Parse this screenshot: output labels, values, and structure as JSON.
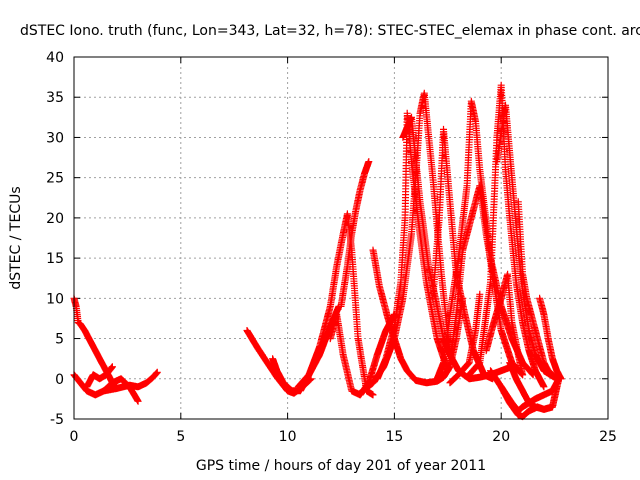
{
  "chart_data": {
    "type": "scatter",
    "title": "dSTEC Iono. truth (func, Lon=343, Lat=32, h=78): STEC-STEC_elemax in phase cont. arc",
    "xlabel": "GPS time / hours of day 201 of year 2011",
    "ylabel": "dSTEC  / TECUs",
    "xlim": [
      0,
      25
    ],
    "ylim": [
      -5,
      40
    ],
    "xticks": [
      0,
      5,
      10,
      15,
      20,
      25
    ],
    "yticks": [
      -5,
      0,
      5,
      10,
      15,
      20,
      25,
      30,
      35,
      40
    ],
    "grid": true,
    "marker": "+",
    "color": "#ff0000",
    "series": [
      {
        "x": [
          0.0,
          0.1,
          0.2,
          0.3,
          0.5,
          0.8,
          1.2,
          1.6,
          1.8,
          2.0
        ],
        "y": [
          10,
          9,
          7,
          6.8,
          6,
          4.5,
          2.5,
          0.5,
          -0.5,
          -1.2
        ]
      },
      {
        "x": [
          0.0,
          0.3,
          0.6,
          1.0,
          1.4,
          1.8,
          2.2,
          2.6,
          3.0
        ],
        "y": [
          0.5,
          -0.5,
          -1.5,
          -2.0,
          -1.5,
          -0.5,
          0.0,
          -1.0,
          -2.8
        ]
      },
      {
        "x": [
          0.6,
          0.9,
          1.2,
          1.5,
          1.8
        ],
        "y": [
          -1.0,
          0.5,
          0.0,
          0.5,
          1.5
        ]
      },
      {
        "x": [
          1.4,
          2.0,
          2.6,
          3.0,
          3.4,
          3.7,
          3.9
        ],
        "y": [
          -1.5,
          -1.2,
          -0.8,
          -1.0,
          -0.5,
          0.2,
          0.8
        ]
      },
      {
        "x": [
          8.1,
          8.6,
          9.0,
          9.5,
          10.0,
          10.3,
          10.7,
          11.1
        ],
        "y": [
          6.0,
          3.8,
          2.2,
          0.2,
          -1.5,
          -1.8,
          -1.0,
          0.0
        ]
      },
      {
        "x": [
          9.3,
          9.5,
          9.8,
          10.2,
          10.6,
          11.0,
          11.5,
          12.0,
          12.4
        ],
        "y": [
          2.5,
          1.0,
          -0.5,
          -1.5,
          -1.5,
          0.5,
          3.0,
          6.5,
          9.0
        ]
      },
      {
        "x": [
          10.5,
          11.0,
          11.5,
          12.0,
          12.3,
          12.6,
          12.8,
          13.0,
          13.3,
          13.7,
          14.0
        ],
        "y": [
          -1.0,
          0.5,
          4.0,
          9.0,
          14.0,
          18.0,
          20.5,
          16.0,
          5.0,
          -1.5,
          -2.0
        ]
      },
      {
        "x": [
          12.0,
          12.3,
          12.6,
          13.0,
          13.4,
          13.8,
          14.2,
          14.6,
          15.0
        ],
        "y": [
          5.0,
          8.0,
          3.0,
          -1.5,
          -2.0,
          -0.5,
          3.0,
          6.0,
          8.0
        ]
      },
      {
        "x": [
          12.5,
          12.8,
          13.0,
          13.2,
          13.4,
          13.6,
          13.8
        ],
        "y": [
          9.0,
          14.0,
          18.0,
          21.0,
          23.5,
          25.5,
          27.0
        ]
      },
      {
        "x": [
          14.0,
          14.3,
          14.7,
          15.0,
          15.3,
          15.6,
          16.0,
          16.5,
          17.0,
          17.3,
          17.6,
          17.9,
          18.2
        ],
        "y": [
          16.0,
          11.5,
          7.5,
          5.0,
          2.5,
          1.0,
          -0.2,
          -0.5,
          -0.3,
          0.2,
          1.5,
          5.0,
          10.0
        ]
      },
      {
        "x": [
          13.5,
          14.0,
          14.5,
          15.0,
          15.4,
          15.8,
          16.0,
          16.2,
          16.4,
          16.8,
          17.2,
          17.6
        ],
        "y": [
          -1.5,
          -0.5,
          1.5,
          5.0,
          10.0,
          18.0,
          25.0,
          33.0,
          35.5,
          25.0,
          13.0,
          3.0
        ]
      },
      {
        "x": [
          14.2,
          14.6,
          15.0,
          15.3,
          15.5,
          15.6,
          15.8,
          16.1,
          16.5,
          17.0,
          17.5
        ],
        "y": [
          0.0,
          2.5,
          6.5,
          12.0,
          20.0,
          33.0,
          27.0,
          20.0,
          12.0,
          5.0,
          1.0
        ]
      },
      {
        "x": [
          15.4,
          15.8,
          16.2,
          16.6,
          17.0,
          17.3,
          17.6,
          18.0,
          18.5,
          19.0,
          19.5,
          20.0,
          20.5
        ],
        "y": [
          30.0,
          32.5,
          22.0,
          14.0,
          9.0,
          5.0,
          3.0,
          1.0,
          0.0,
          0.2,
          0.5,
          1.0,
          1.5
        ]
      },
      {
        "x": [
          16.8,
          17.1,
          17.3,
          17.6,
          17.9,
          18.3,
          18.7,
          19.2,
          19.6
        ],
        "y": [
          10.0,
          20.0,
          31.0,
          22.0,
          13.0,
          8.0,
          3.5,
          0.5,
          0.0
        ]
      },
      {
        "x": [
          17.0,
          17.3,
          17.6,
          18.0,
          18.4,
          18.6,
          18.8,
          19.0,
          19.5,
          20.0,
          20.5,
          21.0,
          21.5
        ],
        "y": [
          0.0,
          2.0,
          8.0,
          15.0,
          24.0,
          34.5,
          32.0,
          26.0,
          15.0,
          9.0,
          5.0,
          2.0,
          0.5
        ]
      },
      {
        "x": [
          17.6,
          17.9,
          18.2,
          18.6,
          19.0,
          19.3,
          19.6,
          20.0,
          20.5,
          21.0
        ],
        "y": [
          2.0,
          8.0,
          16.0,
          20.0,
          24.0,
          18.0,
          13.0,
          6.0,
          2.0,
          0.5
        ]
      },
      {
        "x": [
          17.6,
          18.0,
          18.5,
          18.8,
          19.0
        ],
        "y": [
          -0.5,
          0.5,
          2.0,
          6.0,
          10.5
        ]
      },
      {
        "x": [
          18.5,
          19.0,
          19.5,
          19.8,
          20.0,
          20.2,
          20.4,
          20.7,
          21.0,
          21.3,
          21.6,
          22.0
        ],
        "y": [
          0.5,
          2.0,
          12.0,
          30.0,
          36.5,
          26.0,
          20.0,
          12.0,
          7.0,
          3.5,
          1.0,
          -1.0
        ]
      },
      {
        "x": [
          19.8,
          20.2,
          20.5,
          20.8,
          21.0,
          21.3,
          21.6,
          22.0,
          22.3,
          22.6
        ],
        "y": [
          27.0,
          34.0,
          25.0,
          16.0,
          11.0,
          6.0,
          3.0,
          1.0,
          0.5,
          0.0
        ]
      },
      {
        "x": [
          19.5,
          20.0,
          20.5,
          20.8,
          21.0,
          21.3,
          21.6,
          22.0,
          22.4,
          22.7
        ],
        "y": [
          1.0,
          -1.0,
          -3.0,
          -4.0,
          -3.5,
          -3.0,
          -2.5,
          -2.0,
          -1.5,
          0.0
        ]
      },
      {
        "x": [
          20.0,
          20.4,
          20.8,
          21.0,
          21.3,
          21.7,
          22.0,
          22.4,
          22.6
        ],
        "y": [
          -1.0,
          -3.0,
          -4.5,
          -4.7,
          -4.0,
          -3.5,
          -3.8,
          -3.5,
          -1.0
        ]
      },
      {
        "x": [
          20.4,
          20.7,
          21.0,
          21.3,
          21.6,
          22.0,
          22.4,
          22.7
        ],
        "y": [
          2.0,
          0.0,
          -1.5,
          -3.0,
          -3.5,
          -3.8,
          -3.5,
          0.0
        ]
      },
      {
        "x": [
          21.8,
          22.0,
          22.2,
          22.4,
          22.6,
          22.8
        ],
        "y": [
          10.0,
          8.0,
          5.0,
          2.5,
          1.0,
          0.0
        ]
      },
      {
        "x": [
          20.8,
          21.0,
          21.2,
          21.4,
          21.6,
          21.8,
          22.0,
          22.2,
          22.4,
          22.6,
          22.8
        ],
        "y": [
          22.0,
          13.0,
          10.0,
          8.0,
          6.0,
          4.0,
          2.0,
          1.0,
          0.5,
          0.0,
          0.0
        ]
      },
      {
        "x": [
          19.3,
          19.6,
          20.0,
          20.3,
          20.5,
          20.8,
          21.0
        ],
        "y": [
          3.5,
          6.5,
          10.0,
          13.0,
          7.0,
          3.0,
          0.5
        ]
      }
    ]
  }
}
